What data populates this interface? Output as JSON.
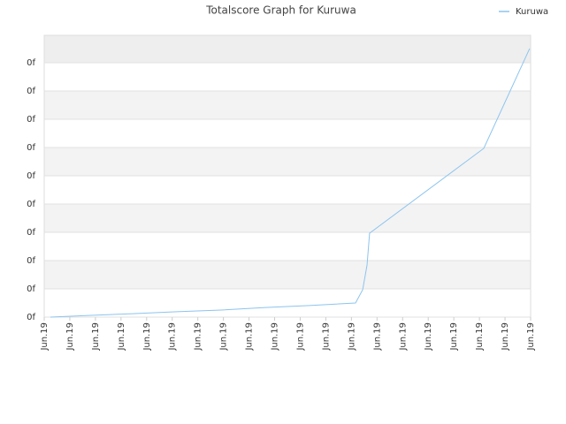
{
  "chart_data": {
    "type": "line",
    "title": "Totalscore Graph for Kuruwa",
    "series": [
      {
        "name": "Kuruwa",
        "color": "#8cc4ee",
        "x": [
          0.24,
          1.73,
          3.45,
          5.18,
          6.91,
          8.64,
          10.36,
          12.16,
          12.44,
          12.61,
          12.71,
          17.17,
          18.96
        ],
        "values": [
          0,
          0.06,
          0.12,
          0.19,
          0.25,
          0.34,
          0.41,
          0.5,
          0.97,
          1.84,
          2.97,
          5.97,
          9.5
        ]
      }
    ],
    "xlim": [
      0,
      19
    ],
    "xticks": [
      {
        "value": 0,
        "label": "Jun.19"
      },
      {
        "value": 1,
        "label": "Jun.19"
      },
      {
        "value": 2,
        "label": "Jun.19"
      },
      {
        "value": 3,
        "label": "Jun.19"
      },
      {
        "value": 4,
        "label": "Jun.19"
      },
      {
        "value": 5,
        "label": "Jun.19"
      },
      {
        "value": 6,
        "label": "Jun.19"
      },
      {
        "value": 7,
        "label": "Jun.19"
      },
      {
        "value": 8,
        "label": "Jun.19"
      },
      {
        "value": 9,
        "label": "Jun.19"
      },
      {
        "value": 10,
        "label": "Jun.19"
      },
      {
        "value": 11,
        "label": "Jun.19"
      },
      {
        "value": 12,
        "label": "Jun.19"
      },
      {
        "value": 13,
        "label": "Jun.19"
      },
      {
        "value": 14,
        "label": "Jun.19"
      },
      {
        "value": 15,
        "label": "Jun.19"
      },
      {
        "value": 16,
        "label": "Jun.19"
      },
      {
        "value": 17,
        "label": "Jun.19"
      },
      {
        "value": 18,
        "label": "Jun.19"
      },
      {
        "value": 19,
        "label": "Jun.19"
      }
    ],
    "ylim": [
      0,
      9.97
    ],
    "yticks": [
      {
        "value": 0,
        "label": "0f"
      },
      {
        "value": 1,
        "label": "0f"
      },
      {
        "value": 2,
        "label": "0f"
      },
      {
        "value": 3,
        "label": "0f"
      },
      {
        "value": 4,
        "label": "0f"
      },
      {
        "value": 5,
        "label": "0f"
      },
      {
        "value": 6,
        "label": "0f"
      },
      {
        "value": 7,
        "label": "0f"
      },
      {
        "value": 8,
        "label": "0f"
      },
      {
        "value": 9,
        "label": "0f"
      }
    ],
    "grid": true,
    "legend": "top-right"
  }
}
